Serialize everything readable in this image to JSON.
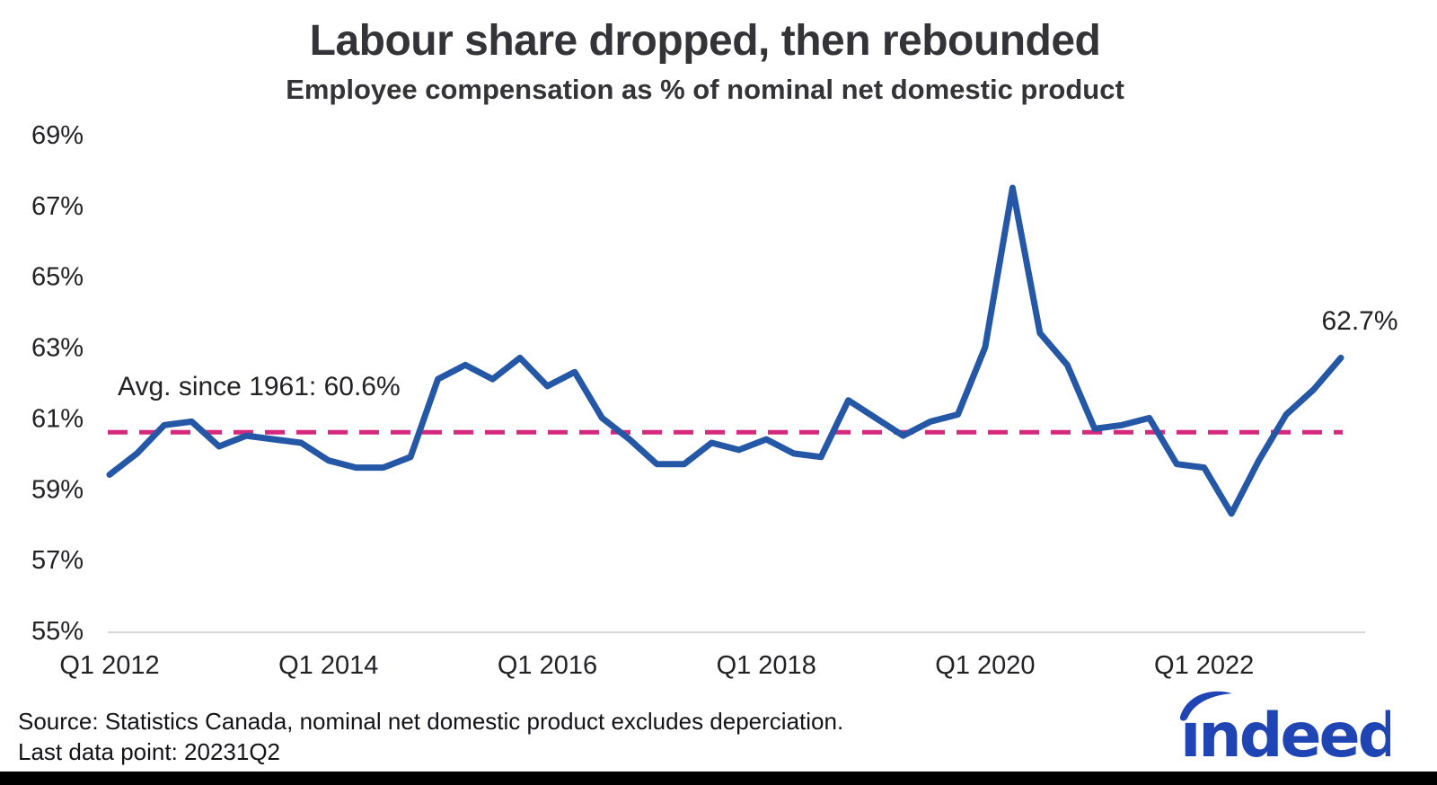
{
  "header": {
    "title": "Labour share dropped, then rebounded",
    "subtitle": "Employee compensation as % of nominal net domestic product"
  },
  "chart_data": {
    "type": "line",
    "title": "Labour share dropped, then rebounded",
    "subtitle": "Employee compensation as % of nominal net domestic product",
    "x": [
      "Q1 2012",
      "Q2 2012",
      "Q3 2012",
      "Q4 2012",
      "Q1 2013",
      "Q2 2013",
      "Q3 2013",
      "Q4 2013",
      "Q1 2014",
      "Q2 2014",
      "Q3 2014",
      "Q4 2014",
      "Q1 2015",
      "Q2 2015",
      "Q3 2015",
      "Q4 2015",
      "Q1 2016",
      "Q2 2016",
      "Q3 2016",
      "Q4 2016",
      "Q1 2017",
      "Q2 2017",
      "Q3 2017",
      "Q4 2017",
      "Q1 2018",
      "Q2 2018",
      "Q3 2018",
      "Q4 2018",
      "Q1 2019",
      "Q2 2019",
      "Q3 2019",
      "Q4 2019",
      "Q1 2020",
      "Q2 2020",
      "Q3 2020",
      "Q4 2020",
      "Q1 2021",
      "Q2 2021",
      "Q3 2021",
      "Q4 2021",
      "Q1 2022",
      "Q2 2022",
      "Q3 2022",
      "Q4 2022",
      "Q1 2023",
      "Q2 2023"
    ],
    "series": [
      {
        "name": "Employee compensation as % of nominal net domestic product",
        "color": "#2557a7",
        "values": [
          59.4,
          60.0,
          60.8,
          60.9,
          60.2,
          60.5,
          60.4,
          60.3,
          59.8,
          59.6,
          59.6,
          59.9,
          62.1,
          62.5,
          62.1,
          62.7,
          61.9,
          62.3,
          61.0,
          60.4,
          59.7,
          59.7,
          60.3,
          60.1,
          60.4,
          60.0,
          59.9,
          61.5,
          61.0,
          60.5,
          60.9,
          61.1,
          63.0,
          67.5,
          63.4,
          62.5,
          60.7,
          60.8,
          61.0,
          59.7,
          59.6,
          58.3,
          59.8,
          61.1,
          61.8,
          62.7
        ]
      }
    ],
    "ylim": [
      55,
      69
    ],
    "y_ticks": [
      55,
      57,
      59,
      61,
      63,
      65,
      67,
      69
    ],
    "y_tick_labels": [
      "55%",
      "57%",
      "59%",
      "61%",
      "63%",
      "65%",
      "67%",
      "69%"
    ],
    "x_ticks": [
      {
        "index": 0,
        "label": "Q1 2012"
      },
      {
        "index": 8,
        "label": "Q1 2014"
      },
      {
        "index": 16,
        "label": "Q1 2016"
      },
      {
        "index": 24,
        "label": "Q1 2018"
      },
      {
        "index": 32,
        "label": "Q1 2020"
      },
      {
        "index": 40,
        "label": "Q1 2022"
      }
    ],
    "grid": "no gridlines except light baseline at 55%",
    "legend": "none",
    "reference_line": {
      "value": 60.6,
      "style": "dashed",
      "color": "#d4297c",
      "label": "Avg. since 1961: 60.6%"
    },
    "end_point_annotation": {
      "x": "Q2 2023",
      "value": 62.7,
      "label": "62.7%"
    }
  },
  "annotations": {
    "reference_label": "Avg. since 1961: 60.6%",
    "end_label": "62.7%"
  },
  "footer": {
    "source_line": "Source: Statistics Canada, nominal net domestic product excludes deperciation.",
    "last_point_line": "Last data point: 20231Q2"
  },
  "logo": {
    "text": "ındeed",
    "brand": "indeed",
    "color": "#1f44b4"
  },
  "colors": {
    "line": "#2557a7",
    "reference": "#d4297c",
    "baseline_grid": "#d8d8d8",
    "text_dark": "#333338",
    "axis_text": "#222226",
    "bottom_bar": "#000000"
  }
}
